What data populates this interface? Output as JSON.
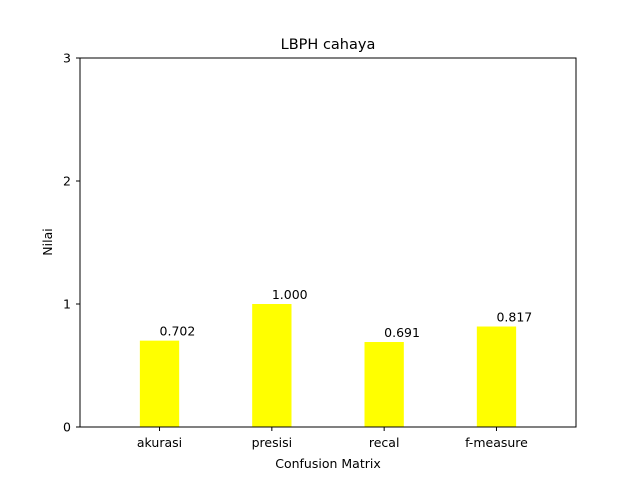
{
  "chart_data": {
    "type": "bar",
    "title": "LBPH cahaya",
    "xlabel": "Confusion Matrix",
    "ylabel": "Nilai",
    "categories": [
      "akurasi",
      "presisi",
      "recal",
      "f-measure"
    ],
    "values": [
      0.702,
      1.0,
      0.691,
      0.817
    ],
    "value_labels": [
      "0.702",
      "1.000",
      "0.691",
      "0.817"
    ],
    "ylim": [
      0,
      3
    ],
    "yticks": [
      0,
      1,
      2,
      3
    ],
    "grid": false,
    "bar_color": "#ffff00"
  }
}
